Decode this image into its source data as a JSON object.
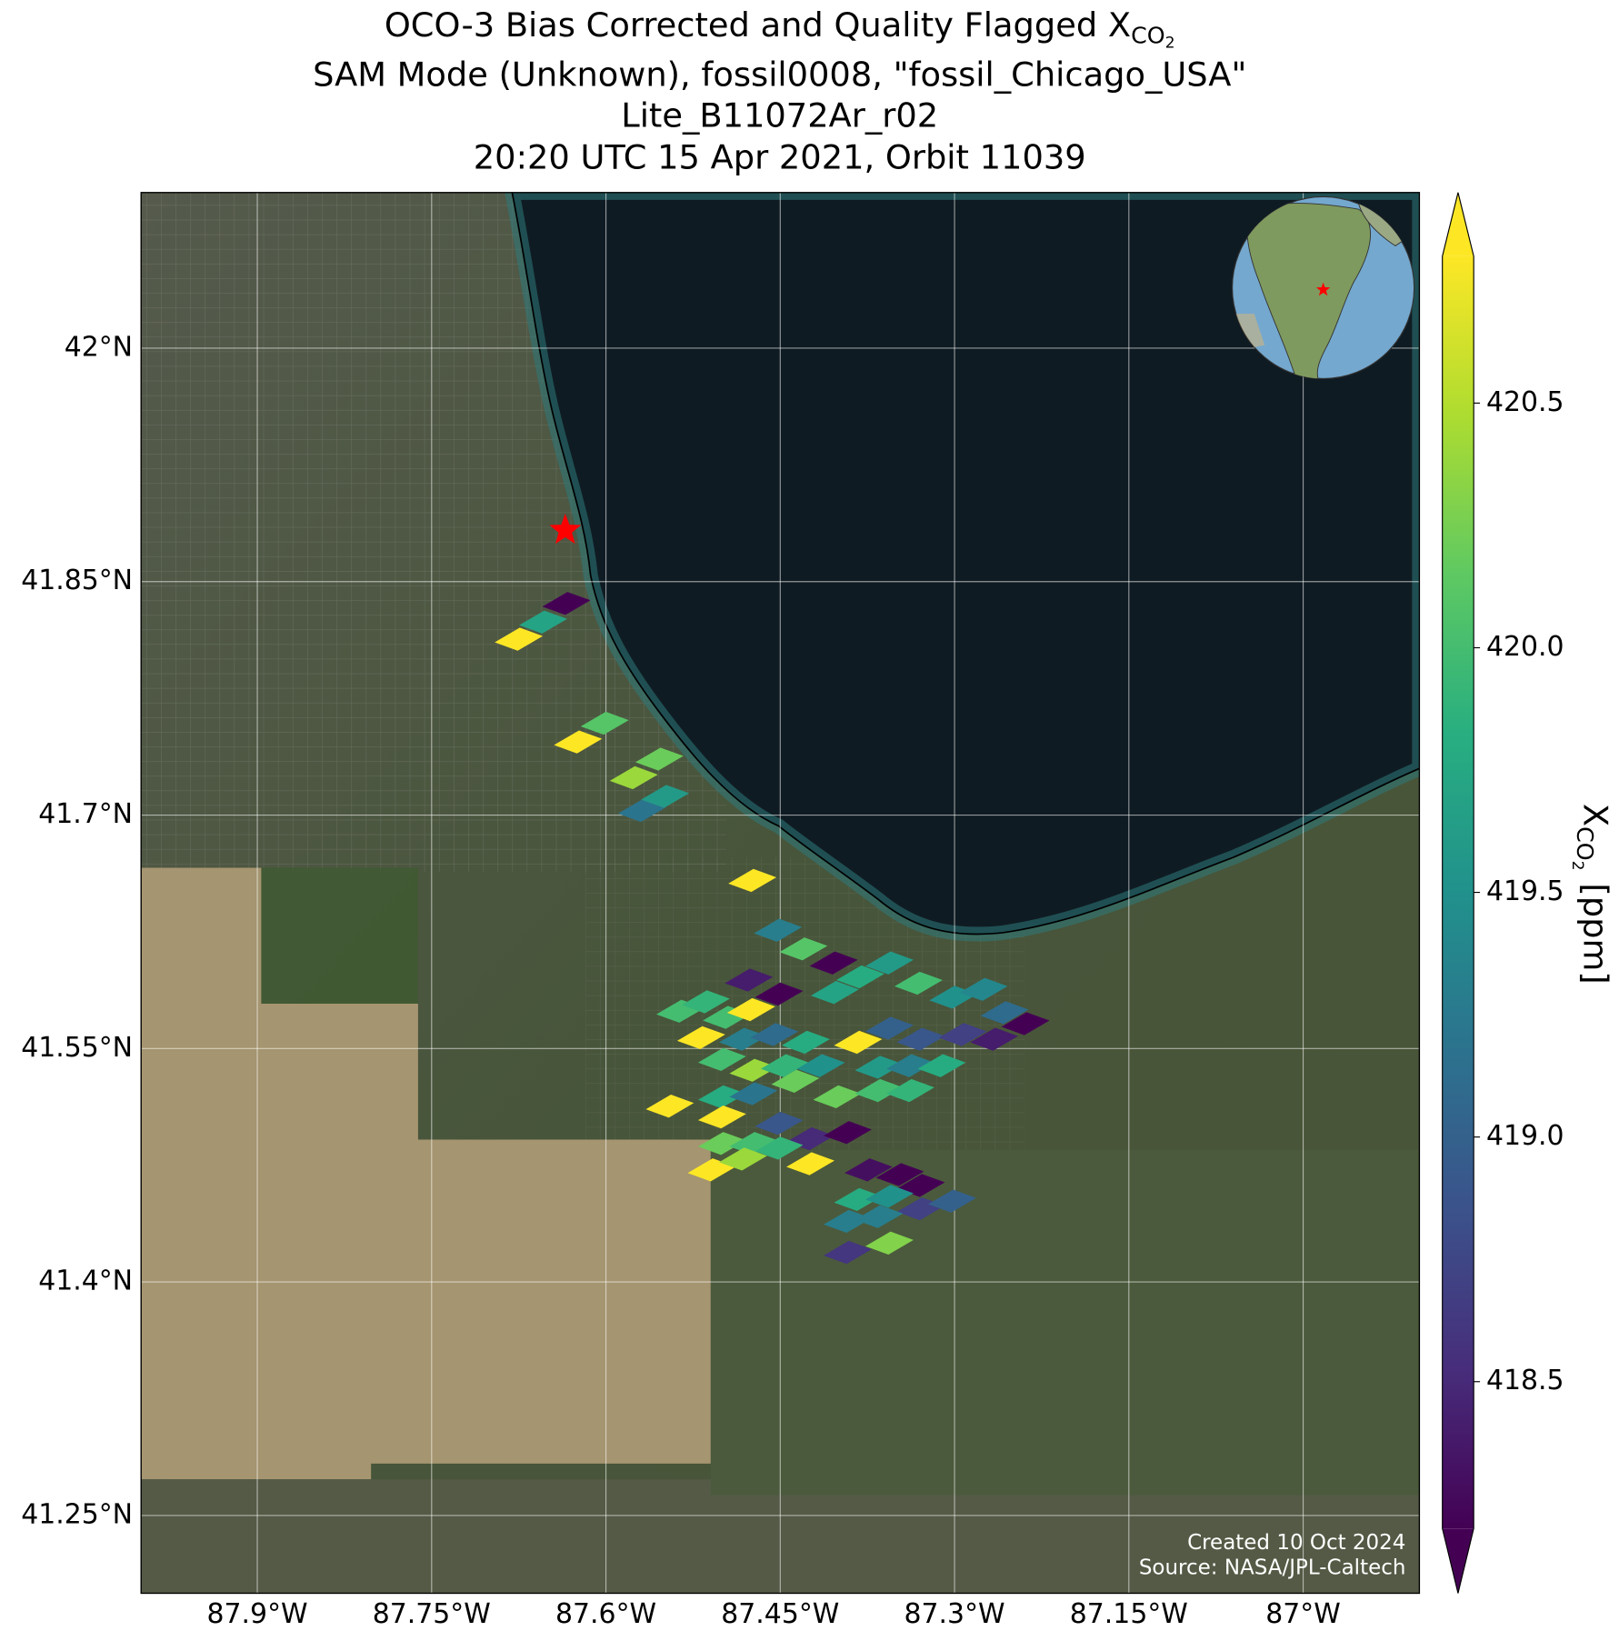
{
  "chart_data": {
    "type": "map",
    "title": {
      "text": "OCO-3 Bias Corrected and Quality Flagged X",
      "subscript": "CO",
      "sub_subscript": "2"
    },
    "subtitle": [
      "SAM Mode (Unknown), fossil0008, \"fossil_Chicago_USA\"",
      "Lite_B11072Ar_r02",
      "20:20 UTC 15 Apr 2021, Orbit 11039"
    ],
    "xlim": [
      -88.0,
      -86.9
    ],
    "ylim": [
      41.2,
      42.1
    ],
    "xticks": [
      {
        "value": -87.9,
        "label": "87.9°W"
      },
      {
        "value": -87.75,
        "label": "87.75°W"
      },
      {
        "value": -87.6,
        "label": "87.6°W"
      },
      {
        "value": -87.45,
        "label": "87.45°W"
      },
      {
        "value": -87.3,
        "label": "87.3°W"
      },
      {
        "value": -87.15,
        "label": "87.15°W"
      },
      {
        "value": -87,
        "label": "87°W"
      }
    ],
    "yticks": [
      {
        "value": 42,
        "label": "42°N"
      },
      {
        "value": 41.85,
        "label": "41.85°N"
      },
      {
        "value": 41.7,
        "label": "41.7°N"
      },
      {
        "value": 41.55,
        "label": "41.55°N"
      },
      {
        "value": 41.4,
        "label": "41.4°N"
      },
      {
        "value": 41.25,
        "label": "41.25°N"
      }
    ],
    "grid": true,
    "target": {
      "lon": -87.635,
      "lat": 41.883,
      "color": "#ff0000"
    },
    "footprints": {
      "lon": [
        -87.675,
        -87.654,
        -87.634,
        -87.624,
        -87.601,
        -87.576,
        -87.554,
        -87.569,
        -87.549,
        -87.474,
        -87.452,
        -87.43,
        -87.404,
        -87.477,
        -87.451,
        -87.403,
        -87.381,
        -87.356,
        -87.331,
        -87.301,
        -87.275,
        -87.257,
        -87.239,
        -87.536,
        -87.514,
        -87.496,
        -87.475,
        -87.518,
        -87.482,
        -87.455,
        -87.428,
        -87.383,
        -87.356,
        -87.329,
        -87.293,
        -87.266,
        -87.5,
        -87.473,
        -87.446,
        -87.415,
        -87.365,
        -87.338,
        -87.311,
        -87.545,
        -87.5,
        -87.473,
        -87.437,
        -87.401,
        -87.365,
        -87.338,
        -87.5,
        -87.451,
        -87.424,
        -87.392,
        -87.5,
        -87.473,
        -87.451,
        -87.509,
        -87.482,
        -87.424,
        -87.374,
        -87.347,
        -87.329,
        -87.383,
        -87.356,
        -87.329,
        -87.302,
        -87.392,
        -87.365,
        -87.392,
        -87.356
      ],
      "lat": [
        41.813,
        41.824,
        41.836,
        41.747,
        41.759,
        41.724,
        41.736,
        41.703,
        41.712,
        41.658,
        41.626,
        41.614,
        41.605,
        41.594,
        41.585,
        41.586,
        41.596,
        41.605,
        41.592,
        41.583,
        41.588,
        41.573,
        41.566,
        41.574,
        41.58,
        41.57,
        41.575,
        41.557,
        41.556,
        41.559,
        41.554,
        41.554,
        41.563,
        41.556,
        41.559,
        41.556,
        41.543,
        41.536,
        41.539,
        41.539,
        41.538,
        41.539,
        41.539,
        41.513,
        41.519,
        41.521,
        41.529,
        41.519,
        41.523,
        41.523,
        41.506,
        41.502,
        41.492,
        41.496,
        41.489,
        41.489,
        41.486,
        41.472,
        41.479,
        41.476,
        41.472,
        41.469,
        41.462,
        41.453,
        41.455,
        41.447,
        41.452,
        41.439,
        41.442,
        41.419,
        41.425
      ],
      "values": [
        420.8,
        419.7,
        418.2,
        420.8,
        420.1,
        420.4,
        420.2,
        419.2,
        419.6,
        420.8,
        419.3,
        420.1,
        418.2,
        418.4,
        418.2,
        419.7,
        419.8,
        419.6,
        420.0,
        419.5,
        419.4,
        419.1,
        418.2,
        420.0,
        419.9,
        420.0,
        420.8,
        420.8,
        419.3,
        419.1,
        419.8,
        420.8,
        419.0,
        418.9,
        418.7,
        418.4,
        420.0,
        420.4,
        419.9,
        419.5,
        419.6,
        419.3,
        419.8,
        420.8,
        419.8,
        419.2,
        420.2,
        420.2,
        420.0,
        419.9,
        420.8,
        418.9,
        418.5,
        418.2,
        420.2,
        420.0,
        419.9,
        420.8,
        420.4,
        420.8,
        418.3,
        418.2,
        418.2,
        419.8,
        419.5,
        418.7,
        419.0,
        419.3,
        419.3,
        418.6,
        420.3
      ]
    },
    "colorbar": {
      "label": {
        "text": "X",
        "subscript": "CO",
        "sub_subscript": "2",
        "unit": "[ppm]"
      },
      "lim": [
        418.2,
        420.8
      ],
      "ticks": [
        418.5,
        {
          "value": 419,
          "label": "419.0"
        },
        419.5,
        {
          "value": 420,
          "label": "420.0"
        },
        420.5
      ],
      "colormap": "viridis",
      "extend": "both"
    },
    "annotations": [
      "Created 10 Oct 2024",
      "Source: NASA/JPL-Caltech"
    ]
  }
}
